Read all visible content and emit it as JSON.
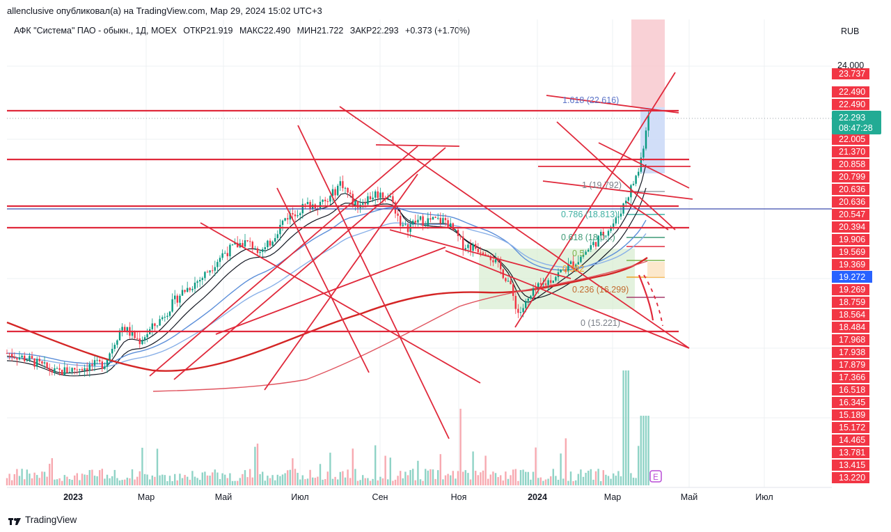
{
  "header": {
    "published_by": "allenclusive опубликовал(а) на TradingView.com, Мар 29, 2024 15:02 UTC+3",
    "symbol_line": "АФК \"Система\" ПАО - обыкн., 1Д, MOEX",
    "open": "ОТКР21.919",
    "high": "МАКС22.490",
    "low": "МИН21.722",
    "close": "ЗАКР22.293",
    "change": "+0.373 (+1.70%)",
    "currency": "RUB"
  },
  "price_axis": {
    "top_label": "24.000",
    "labels": [
      "23.737",
      "22.490",
      "22.490",
      "22.005",
      "21.370",
      "20.858",
      "20.799",
      "20.636",
      "20.636",
      "20.547",
      "20.394",
      "19.906",
      "19.569",
      "19.369",
      "19.269",
      "18.759",
      "18.564",
      "18.484",
      "17.968",
      "17.938",
      "17.879",
      "17.366",
      "16.518",
      "16.345",
      "15.189",
      "15.172",
      "14.465",
      "13.781",
      "13.415",
      "13.220"
    ],
    "current_price": "22.293",
    "countdown": "08:47:28",
    "blue_label": "19.272"
  },
  "time_axis": {
    "labels": [
      "2023",
      "Мар",
      "Май",
      "Июл",
      "Сен",
      "Ноя",
      "2024",
      "Мар",
      "Май",
      "Июл"
    ]
  },
  "fib_labels": [
    "1.618 (22.616)",
    "1 (19.792)",
    "0.786 (18.813)",
    "0.618 (18.0...)",
    "0.5",
    "0.382",
    "0.236 (16.299)",
    "0 (15.221)"
  ],
  "event_marker": "E",
  "brand": "TradingView",
  "colors": {
    "up": "#089981",
    "down": "#f23645",
    "drawing_red": "#e0293b",
    "ema_black": "#131722",
    "ma_blue": "#5b8ed9",
    "ma_red": "#d42525",
    "label_red": "#f23645",
    "label_green": "#22ab94",
    "label_blue": "#2962ff"
  },
  "chart_data": {
    "type": "candlestick",
    "instrument": "АФК \"Система\" ПАО - обыкн.",
    "interval": "1Д",
    "exchange": "MOEX",
    "last_close": 22.293,
    "fib_levels": [
      {
        "ratio": 1.618,
        "price": 22.616
      },
      {
        "ratio": 1,
        "price": 19.792
      },
      {
        "ratio": 0.786,
        "price": 18.813
      },
      {
        "ratio": 0.236,
        "price": 16.299
      },
      {
        "ratio": 0,
        "price": 15.221
      }
    ],
    "horizontal_levels": [
      22.49,
      20.858,
      20.636,
      20.394,
      17.968
    ],
    "monthly_close_estimates": {
      "x": [
        "2023-01",
        "2023-02",
        "2023-03",
        "2023-04",
        "2023-05",
        "2023-06",
        "2023-07",
        "2023-08",
        "2023-09",
        "2023-10",
        "2023-11",
        "2023-12",
        "2024-01",
        "2024-02",
        "2024-03"
      ],
      "close": [
        14.0,
        14.7,
        15.6,
        16.6,
        17.0,
        17.9,
        18.8,
        19.6,
        18.8,
        18.7,
        17.6,
        16.4,
        17.1,
        18.4,
        22.29
      ]
    }
  }
}
